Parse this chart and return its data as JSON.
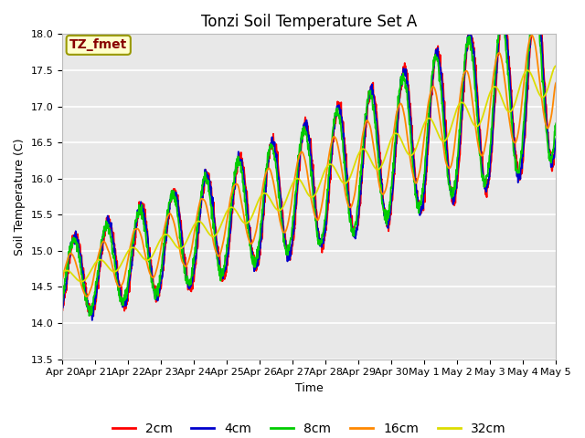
{
  "title": "Tonzi Soil Temperature Set A",
  "xlabel": "Time",
  "ylabel": "Soil Temperature (C)",
  "ylim": [
    13.5,
    18.0
  ],
  "yticks": [
    13.5,
    14.0,
    14.5,
    15.0,
    15.5,
    16.0,
    16.5,
    17.0,
    17.5,
    18.0
  ],
  "xtick_labels": [
    "Apr 20",
    "Apr 21",
    "Apr 22",
    "Apr 23",
    "Apr 24",
    "Apr 25",
    "Apr 26",
    "Apr 27",
    "Apr 28",
    "Apr 29",
    "Apr 30",
    "May 1",
    "May 2",
    "May 3",
    "May 4",
    "May 5"
  ],
  "legend_labels": [
    "2cm",
    "4cm",
    "8cm",
    "16cm",
    "32cm"
  ],
  "line_colors": [
    "#ff0000",
    "#0000cc",
    "#00cc00",
    "#ff8800",
    "#dddd00"
  ],
  "line_widths": [
    1.3,
    1.3,
    1.3,
    1.3,
    1.3
  ],
  "annotation_text": "TZ_fmet",
  "annotation_color": "#880000",
  "annotation_bg": "#ffffcc",
  "annotation_border": "#999900",
  "plot_bg_color": "#e8e8e8",
  "title_fontsize": 12,
  "axis_fontsize": 9,
  "legend_fontsize": 10,
  "tick_fontsize": 8
}
